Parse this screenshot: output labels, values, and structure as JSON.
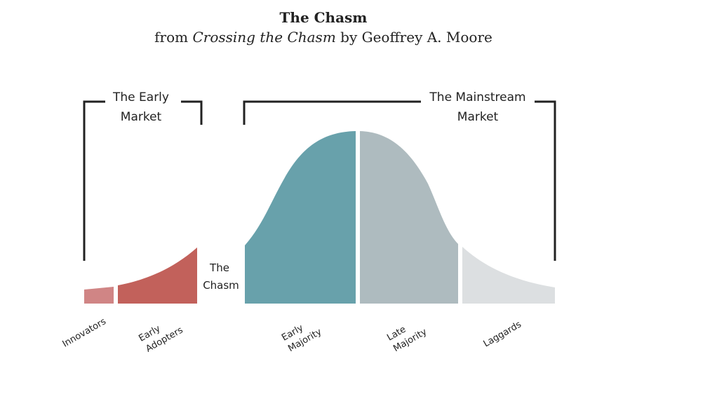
{
  "header": {
    "title": "The Chasm",
    "sub_prefix": "from ",
    "book_title": "Crossing the Chasm",
    "sub_suffix": " by Geoffrey A. Moore"
  },
  "brackets": {
    "early_line1": "The Early",
    "early_line2": "Market",
    "main_line1": "The Mainstream",
    "main_line2": "Market"
  },
  "chasm": {
    "line1": "The",
    "line2": "Chasm"
  },
  "segments": {
    "innovators": "Innovators",
    "early_adopters_1": "Early",
    "early_adopters_2": "Adopters",
    "early_majority_1": "Early",
    "early_majority_2": "Majority",
    "late_majority_1": "Late",
    "late_majority_2": "Majority",
    "laggards": "Laggards"
  },
  "colors": {
    "innovators": "#d08585",
    "early_adopters": "#c2615b",
    "early_majority": "#68a1ab",
    "late_majority": "#aebbbf",
    "laggards": "#dcdfe1",
    "bracket": "#222222"
  }
}
